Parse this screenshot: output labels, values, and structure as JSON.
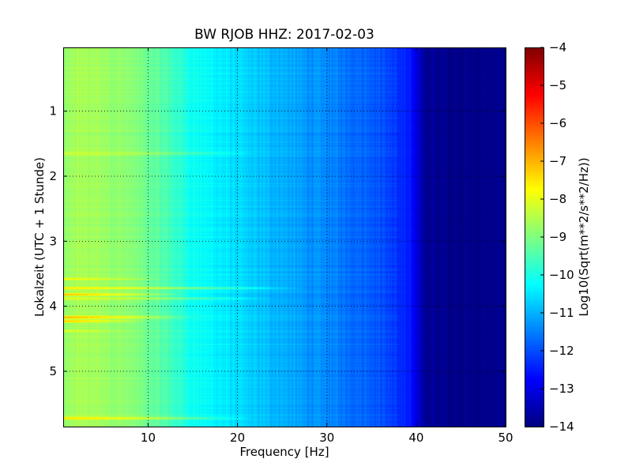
{
  "chart_data": {
    "type": "heatmap",
    "title": "BW RJOB HHZ: 2017-02-03",
    "xlabel": "Frequency [Hz]",
    "ylabel": "Lokalzeit (UTC + 1 Stunde)",
    "xlim": [
      0.5,
      50
    ],
    "ylim": [
      5.85,
      0.02
    ],
    "x_ticks": [
      10,
      20,
      30,
      40,
      50
    ],
    "y_ticks": [
      1,
      2,
      3,
      4,
      5
    ],
    "grid": true,
    "grid_style": "dotted",
    "colormap": "jet",
    "colorbar": {
      "label": "Log10(Sqrt(m**2/s**2/Hz))",
      "min": -14,
      "max": -4,
      "ticks": [
        -4,
        -5,
        -6,
        -7,
        -8,
        -9,
        -10,
        -11,
        -12,
        -13,
        -14
      ]
    },
    "frequency_profile": {
      "x": [
        0.5,
        2,
        5,
        8,
        10,
        12,
        15,
        18,
        20,
        22,
        25,
        28,
        30,
        32,
        35,
        37,
        39,
        40,
        41,
        45,
        50
      ],
      "values": [
        -8.9,
        -8.6,
        -8.7,
        -8.9,
        -9.2,
        -9.5,
        -10.1,
        -10.4,
        -10.6,
        -10.8,
        -11.0,
        -11.3,
        -11.4,
        -11.6,
        -11.8,
        -12.1,
        -12.5,
        -12.9,
        -13.8,
        -13.9,
        -13.9
      ]
    },
    "high_amplitude_bands": [
      {
        "time": 1.65,
        "x_end": 22,
        "peak": -8.2
      },
      {
        "time": 3.58,
        "x_end": 12,
        "peak": -7.6
      },
      {
        "time": 3.72,
        "x_end": 28,
        "peak": -7.3
      },
      {
        "time": 3.82,
        "x_end": 15,
        "peak": -6.6
      },
      {
        "time": 3.88,
        "x_end": 24,
        "peak": -7.8
      },
      {
        "time": 4.17,
        "x_end": 15,
        "peak": -6.7
      },
      {
        "time": 4.23,
        "x_end": 10,
        "peak": -6.9
      },
      {
        "time": 4.38,
        "x_end": 8,
        "peak": -8.0
      },
      {
        "time": 5.72,
        "x_end": 22,
        "peak": -7.2
      }
    ]
  }
}
